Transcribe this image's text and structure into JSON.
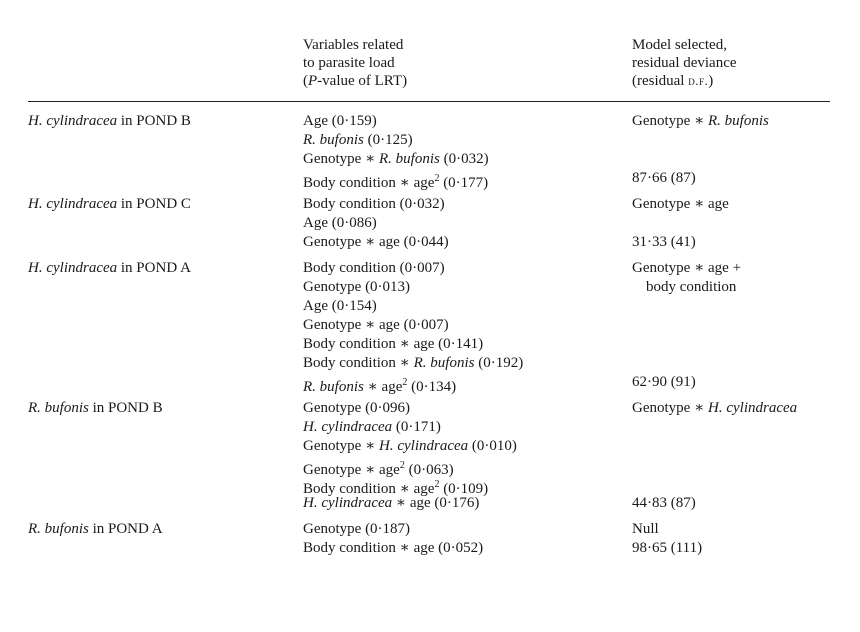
{
  "headers": {
    "col2": [
      "Variables related",
      "to parasite load",
      "(P-value of LRT)"
    ],
    "col3": [
      "Model selected,",
      "residual deviance",
      "(residual d.f.)"
    ]
  },
  "rows": [
    {
      "subject_italic": "H. cylindracea",
      "subject_rest": " in POND B",
      "variables": [
        {
          "parts": [
            {
              "t": "Age (0·159)",
              "i": false
            }
          ]
        },
        {
          "parts": [
            {
              "t": "R. bufonis",
              "i": true
            },
            {
              "t": " (0·125)",
              "i": false
            }
          ]
        },
        {
          "parts": [
            {
              "t": "Genotype ∗ ",
              "i": false
            },
            {
              "t": "R. bufonis",
              "i": true
            },
            {
              "t": " (0·032)",
              "i": false
            }
          ]
        },
        {
          "parts": [
            {
              "t": "Body condition ∗ age",
              "i": false
            },
            {
              "t": "2",
              "sup": true
            },
            {
              "t": " (0·177)",
              "i": false
            }
          ]
        }
      ],
      "model": [
        {
          "parts": [
            {
              "t": "Genotype ∗ ",
              "i": false
            },
            {
              "t": "R. bufonis",
              "i": true
            }
          ]
        }
      ],
      "deviance": "87·66 (87)"
    },
    {
      "subject_italic": "H. cylindracea",
      "subject_rest": " in POND C",
      "variables": [
        {
          "parts": [
            {
              "t": "Body condition (0·032)",
              "i": false
            }
          ]
        },
        {
          "parts": [
            {
              "t": "Age (0·086)",
              "i": false
            }
          ]
        },
        {
          "parts": [
            {
              "t": "Genotype ∗ age (0·044)",
              "i": false
            }
          ]
        }
      ],
      "model": [
        {
          "parts": [
            {
              "t": "Genotype ∗ age",
              "i": false
            }
          ]
        }
      ],
      "deviance": "31·33 (41)"
    },
    {
      "subject_italic": "H. cylindracea",
      "subject_rest": " in POND A",
      "variables": [
        {
          "parts": [
            {
              "t": "Body condition (0·007)",
              "i": false
            }
          ]
        },
        {
          "parts": [
            {
              "t": "Genotype (0·013)",
              "i": false
            }
          ]
        },
        {
          "parts": [
            {
              "t": "Age (0·154)",
              "i": false
            }
          ]
        },
        {
          "parts": [
            {
              "t": "Genotype ∗ age (0·007)",
              "i": false
            }
          ]
        },
        {
          "parts": [
            {
              "t": "Body condition ∗ age (0·141)",
              "i": false
            }
          ]
        },
        {
          "parts": [
            {
              "t": "Body condition ∗ ",
              "i": false
            },
            {
              "t": "R. bufonis",
              "i": true
            },
            {
              "t": " (0·192)",
              "i": false
            }
          ]
        },
        {
          "parts": [
            {
              "t": "R. bufonis",
              "i": true
            },
            {
              "t": " ∗ age",
              "i": false
            },
            {
              "t": "2",
              "sup": true
            },
            {
              "t": " (0·134)",
              "i": false
            }
          ]
        }
      ],
      "model": [
        {
          "parts": [
            {
              "t": "Genotype ∗ age +",
              "i": false
            }
          ]
        },
        {
          "parts": [
            {
              "t": "body condition",
              "i": false
            }
          ],
          "indent": true
        }
      ],
      "deviance": "62·90 (91)"
    },
    {
      "subject_italic": "R. bufonis",
      "subject_rest": " in POND B",
      "variables": [
        {
          "parts": [
            {
              "t": "Genotype (0·096)",
              "i": false
            }
          ]
        },
        {
          "parts": [
            {
              "t": "H. cylindracea",
              "i": true
            },
            {
              "t": " (0·171)",
              "i": false
            }
          ]
        },
        {
          "parts": [
            {
              "t": "Genotype ∗ ",
              "i": false
            },
            {
              "t": "H. cylindracea",
              "i": true
            },
            {
              "t": " (0·010)",
              "i": false
            }
          ]
        },
        {
          "parts": [
            {
              "t": "Genotype ∗ age",
              "i": false
            },
            {
              "t": "2",
              "sup": true
            },
            {
              "t": " (0·063)",
              "i": false
            }
          ]
        },
        {
          "parts": [
            {
              "t": "Body condition ∗ age",
              "i": false
            },
            {
              "t": "2",
              "sup": true
            },
            {
              "t": " (0·109)",
              "i": false
            }
          ]
        },
        {
          "parts": [
            {
              "t": "H. cylindracea",
              "i": true
            },
            {
              "t": " ∗ age (0·176)",
              "i": false
            }
          ]
        }
      ],
      "model": [
        {
          "parts": [
            {
              "t": "Genotype ∗ ",
              "i": false
            },
            {
              "t": "H. cylindracea",
              "i": true
            }
          ]
        }
      ],
      "deviance": "44·83 (87)"
    },
    {
      "subject_italic": "R. bufonis",
      "subject_rest": " in POND A",
      "variables": [
        {
          "parts": [
            {
              "t": "Genotype (0·187)",
              "i": false
            }
          ]
        },
        {
          "parts": [
            {
              "t": "Body condition ∗ age (0·052)",
              "i": false
            }
          ]
        }
      ],
      "model": [
        {
          "parts": [
            {
              "t": "Null",
              "i": false
            }
          ]
        }
      ],
      "deviance": "98·65 (111)"
    }
  ]
}
